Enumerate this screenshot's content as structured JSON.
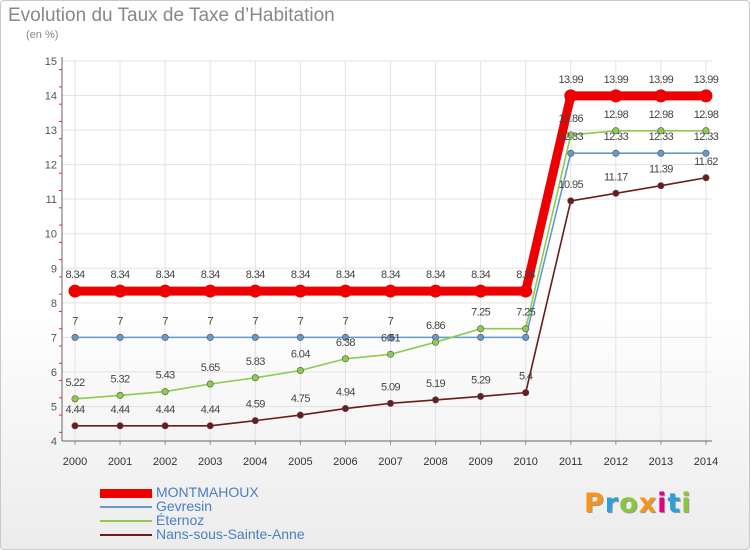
{
  "title": "Evolution du Taux de Taxe d’Habitation",
  "unit": "(en %)",
  "brand": {
    "text": "Proxiti",
    "colors": [
      "#f7941d",
      "#2e9fd8",
      "#8cc63f",
      "#f7941d",
      "#e6007e",
      "#2e9fd8",
      "#8cc63f"
    ]
  },
  "chart_data": {
    "type": "line",
    "title": "Evolution du Taux de Taxe d’Habitation",
    "ylabel": "(en %)",
    "xlabel": "",
    "ylim": [
      4,
      15
    ],
    "y_ticks": [
      "4",
      "5",
      "6",
      "7",
      "8",
      "9",
      "10",
      "11",
      "12",
      "13",
      "14",
      "15"
    ],
    "grid": true,
    "legend_placement": "bottom-left",
    "x": [
      "2000",
      "2001",
      "2002",
      "2003",
      "2004",
      "2005",
      "2006",
      "2007",
      "2008",
      "2009",
      "2010",
      "2011",
      "2012",
      "2013",
      "2014"
    ],
    "series": [
      {
        "name": "MONTMAHOUX",
        "color": "#ee0000",
        "values": [
          8.34,
          8.34,
          8.34,
          8.34,
          8.34,
          8.34,
          8.34,
          8.34,
          8.34,
          8.34,
          8.34,
          13.99,
          13.99,
          13.99,
          13.99
        ],
        "labels": [
          "8.34",
          "8.34",
          "8.34",
          "8.34",
          "8.34",
          "8.34",
          "8.34",
          "8.34",
          "8.34",
          "8.34",
          "8.34",
          "13.99",
          "13.99",
          "13.99",
          "13.99"
        ]
      },
      {
        "name": "Gevresin",
        "color": "#6699cc",
        "values": [
          7,
          7,
          7,
          7,
          7,
          7,
          7,
          7,
          7,
          7,
          7,
          12.33,
          12.33,
          12.33,
          12.33
        ],
        "labels": [
          "7",
          "7",
          "7",
          "7",
          "7",
          "7",
          "7",
          "7",
          "",
          "",
          "",
          "12.33",
          "12.33",
          "12.33",
          "12.33"
        ]
      },
      {
        "name": "Éternoz",
        "color": "#8ccc4e",
        "values": [
          5.22,
          5.32,
          5.43,
          5.65,
          5.83,
          6.04,
          6.38,
          6.51,
          6.86,
          7.25,
          7.25,
          12.86,
          12.98,
          12.98,
          12.98
        ],
        "labels": [
          "5.22",
          "5.32",
          "5.43",
          "5.65",
          "5.83",
          "6.04",
          "6.38",
          "6.51",
          "6.86",
          "7.25",
          "7.25",
          "12.86",
          "12.98",
          "12.98",
          "12.98"
        ]
      },
      {
        "name": "Nans-sous-Sainte-Anne",
        "color": "#6b1b1b",
        "values": [
          4.44,
          4.44,
          4.44,
          4.44,
          4.59,
          4.75,
          4.94,
          5.09,
          5.19,
          5.29,
          5.4,
          10.95,
          11.17,
          11.39,
          11.62
        ],
        "labels": [
          "4.44",
          "4.44",
          "4.44",
          "4.44",
          "4.59",
          "4.75",
          "4.94",
          "5.09",
          "5.19",
          "5.29",
          "5.4",
          "10.95",
          "11.17",
          "11.39",
          "11.62"
        ]
      }
    ]
  }
}
